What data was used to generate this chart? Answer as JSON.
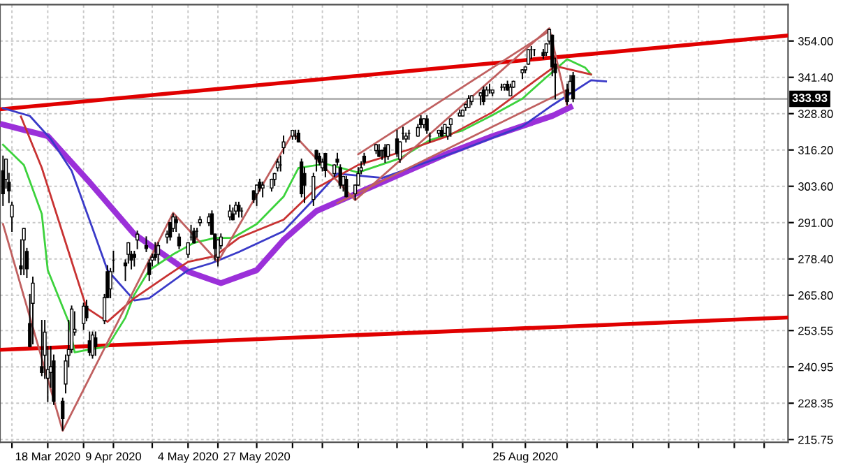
{
  "chart_data": {
    "type": "candlestick",
    "x": [
      "2020-03-03",
      "2020-03-04",
      "2020-03-05",
      "2020-03-06",
      "2020-03-09",
      "2020-03-10",
      "2020-03-11",
      "2020-03-12",
      "2020-03-13",
      "2020-03-16",
      "2020-03-17",
      "2020-03-18",
      "2020-03-19",
      "2020-03-20",
      "2020-03-23",
      "2020-03-24",
      "2020-03-25",
      "2020-03-26",
      "2020-03-27",
      "2020-03-30",
      "2020-03-31",
      "2020-04-01",
      "2020-04-02",
      "2020-04-03",
      "2020-04-06",
      "2020-04-07",
      "2020-04-08",
      "2020-04-09",
      "2020-04-13",
      "2020-04-14",
      "2020-04-15",
      "2020-04-16",
      "2020-04-17",
      "2020-04-20",
      "2020-04-21",
      "2020-04-22",
      "2020-04-23",
      "2020-04-24",
      "2020-04-27",
      "2020-04-28",
      "2020-04-29",
      "2020-04-30",
      "2020-05-01",
      "2020-05-04",
      "2020-05-05",
      "2020-05-06",
      "2020-05-07",
      "2020-05-08",
      "2020-05-11",
      "2020-05-12",
      "2020-05-13",
      "2020-05-14",
      "2020-05-15",
      "2020-05-18",
      "2020-05-19",
      "2020-05-20",
      "2020-05-21",
      "2020-05-22",
      "2020-05-26",
      "2020-05-27",
      "2020-05-28",
      "2020-05-29",
      "2020-06-01",
      "2020-06-02",
      "2020-06-03",
      "2020-06-04",
      "2020-06-05",
      "2020-06-08",
      "2020-06-09",
      "2020-06-10",
      "2020-06-11",
      "2020-06-12",
      "2020-06-15",
      "2020-06-16",
      "2020-06-17",
      "2020-06-18",
      "2020-06-19",
      "2020-06-22",
      "2020-06-23",
      "2020-06-24",
      "2020-06-25",
      "2020-06-26",
      "2020-06-29",
      "2020-06-30",
      "2020-07-01",
      "2020-07-02",
      "2020-07-06",
      "2020-07-07",
      "2020-07-08",
      "2020-07-09",
      "2020-07-10",
      "2020-07-13",
      "2020-07-14",
      "2020-07-15",
      "2020-07-16",
      "2020-07-17",
      "2020-07-20",
      "2020-07-21",
      "2020-07-22",
      "2020-07-23",
      "2020-07-24",
      "2020-07-27",
      "2020-07-28",
      "2020-07-29",
      "2020-07-30",
      "2020-07-31",
      "2020-08-03",
      "2020-08-04",
      "2020-08-05",
      "2020-08-06",
      "2020-08-07",
      "2020-08-10",
      "2020-08-11",
      "2020-08-12",
      "2020-08-13",
      "2020-08-14",
      "2020-08-17",
      "2020-08-18",
      "2020-08-19",
      "2020-08-20",
      "2020-08-21",
      "2020-08-24",
      "2020-08-25",
      "2020-08-26",
      "2020-08-27",
      "2020-08-28",
      "2020-08-31",
      "2020-09-01",
      "2020-09-02",
      "2020-09-03",
      "2020-09-04",
      "2020-09-08",
      "2020-09-09",
      "2020-09-10"
    ],
    "ohlc": [
      [
        309,
        314,
        297,
        301
      ],
      [
        306,
        313,
        303,
        313
      ],
      [
        305,
        308,
        298,
        302
      ],
      [
        293,
        298,
        288,
        297
      ],
      [
        276,
        285,
        273,
        275
      ],
      [
        285,
        289,
        273,
        289
      ],
      [
        281,
        282,
        272,
        275
      ],
      [
        256,
        266,
        248,
        248
      ],
      [
        263,
        272,
        249,
        270
      ],
      [
        241,
        257,
        238,
        239
      ],
      [
        245,
        257,
        237,
        253
      ],
      [
        237,
        248,
        229,
        240
      ],
      [
        239,
        248,
        234,
        241
      ],
      [
        243,
        245,
        228,
        229
      ],
      [
        229,
        230,
        219,
        223
      ],
      [
        235,
        245,
        232,
        243
      ],
      [
        245,
        257,
        241,
        247
      ],
      [
        247,
        262,
        246,
        261
      ],
      [
        253,
        260,
        252,
        254
      ],
      [
        256,
        263,
        254,
        262
      ],
      [
        262,
        264,
        257,
        258
      ],
      [
        250,
        253,
        245,
        246
      ],
      [
        245,
        253,
        244,
        252
      ],
      [
        251,
        253,
        245,
        248
      ],
      [
        257,
        266,
        256,
        265
      ],
      [
        274,
        276,
        265,
        265
      ],
      [
        268,
        275,
        265,
        274
      ],
      [
        278,
        281,
        274,
        278
      ],
      [
        277,
        278,
        271,
        276
      ],
      [
        280,
        284,
        277,
        284
      ],
      [
        280,
        281,
        275,
        278
      ],
      [
        280,
        281,
        276,
        279
      ],
      [
        285,
        288,
        282,
        287
      ],
      [
        283,
        286,
        281,
        282
      ],
      [
        277,
        278,
        271,
        273
      ],
      [
        278,
        280,
        276,
        279
      ],
      [
        280,
        284,
        278,
        279
      ],
      [
        280,
        284,
        277,
        283
      ],
      [
        286,
        288,
        284,
        287
      ],
      [
        291,
        291,
        285,
        286
      ],
      [
        289,
        294,
        288,
        293
      ],
      [
        292,
        293,
        288,
        291
      ],
      [
        286,
        287,
        282,
        283
      ],
      [
        280,
        284,
        279,
        284
      ],
      [
        286,
        290,
        285,
        286
      ],
      [
        288,
        289,
        284,
        284
      ],
      [
        288,
        289,
        286,
        288
      ],
      [
        291,
        293,
        290,
        292
      ],
      [
        291,
        294,
        290,
        293
      ],
      [
        294,
        295,
        287,
        287
      ],
      [
        287,
        287,
        278,
        282
      ],
      [
        279,
        285,
        276,
        285
      ],
      [
        283,
        287,
        282,
        286
      ],
      [
        293,
        297,
        292,
        295
      ],
      [
        294,
        296,
        292,
        292
      ],
      [
        295,
        298,
        294,
        297
      ],
      [
        297,
        298,
        293,
        295
      ],
      [
        295,
        296,
        293,
        295
      ],
      [
        302,
        302,
        298,
        299
      ],
      [
        301,
        304,
        297,
        304
      ],
      [
        305,
        306,
        302,
        303
      ],
      [
        303,
        305,
        300,
        304
      ],
      [
        303,
        306,
        302,
        306
      ],
      [
        306,
        308,
        304,
        308
      ],
      [
        310,
        313,
        309,
        312
      ],
      [
        311,
        314,
        309,
        311
      ],
      [
        317,
        321,
        315,
        319
      ],
      [
        321,
        323,
        320,
        323
      ],
      [
        321,
        323,
        320,
        321
      ],
      [
        322,
        323,
        319,
        319
      ],
      [
        312,
        313,
        300,
        301
      ],
      [
        308,
        310,
        298,
        304
      ],
      [
        299,
        308,
        297,
        307
      ],
      [
        316,
        316,
        309,
        313
      ],
      [
        314,
        315,
        311,
        312
      ],
      [
        310,
        313,
        309,
        312
      ],
      [
        315,
        315,
        307,
        309
      ],
      [
        308,
        311,
        307,
        311
      ],
      [
        313,
        315,
        311,
        312
      ],
      [
        310,
        311,
        303,
        304
      ],
      [
        304,
        307,
        302,
        307
      ],
      [
        306,
        307,
        300,
        300
      ],
      [
        301,
        304,
        299,
        304
      ],
      [
        304,
        310,
        304,
        308
      ],
      [
        309,
        312,
        308,
        310
      ],
      [
        314,
        315,
        311,
        312
      ],
      [
        316,
        318,
        315,
        318
      ],
      [
        316,
        318,
        314,
        314
      ],
      [
        316,
        316,
        313,
        316
      ],
      [
        317,
        318,
        312,
        314
      ],
      [
        314,
        318,
        313,
        318
      ],
      [
        320,
        323,
        314,
        315
      ],
      [
        313,
        319,
        312,
        319
      ],
      [
        322,
        324,
        320,
        322
      ],
      [
        320,
        322,
        319,
        321
      ],
      [
        322,
        323,
        320,
        322
      ],
      [
        321,
        325,
        321,
        324
      ],
      [
        327,
        328,
        324,
        325
      ],
      [
        325,
        327,
        324,
        327
      ],
      [
        327,
        328,
        322,
        323
      ],
      [
        321,
        322,
        319,
        321
      ],
      [
        322,
        323,
        321,
        323
      ],
      [
        323,
        324,
        321,
        321
      ],
      [
        322,
        325,
        322,
        325
      ],
      [
        321,
        324,
        320,
        324
      ],
      [
        325,
        327,
        321,
        327
      ],
      [
        328,
        330,
        328,
        329
      ],
      [
        328,
        330,
        328,
        330
      ],
      [
        331,
        332,
        330,
        332
      ],
      [
        331,
        335,
        331,
        334
      ],
      [
        333,
        335,
        332,
        335
      ],
      [
        335,
        336,
        332,
        336
      ],
      [
        337,
        338,
        332,
        333
      ],
      [
        335,
        338,
        335,
        337
      ],
      [
        337,
        339,
        336,
        337
      ],
      [
        336,
        337,
        335,
        337
      ],
      [
        338,
        339,
        337,
        338
      ],
      [
        338,
        339,
        337,
        339
      ],
      [
        339,
        340,
        337,
        337
      ],
      [
        335,
        339,
        335,
        338
      ],
      [
        338,
        340,
        338,
        340
      ],
      [
        343,
        344,
        341,
        344
      ],
      [
        344,
        345,
        343,
        345
      ],
      [
        346,
        351,
        346,
        351
      ],
      [
        351,
        352,
        348,
        351
      ],
      [
        351,
        351,
        349,
        351
      ],
      [
        350,
        351,
        348,
        349
      ],
      [
        350,
        353,
        349,
        353
      ],
      [
        354,
        358,
        353,
        358
      ],
      [
        356,
        356,
        342,
        345
      ],
      [
        346,
        348,
        334,
        343
      ],
      [
        337,
        339,
        332,
        333
      ],
      [
        336,
        342,
        336,
        340
      ],
      [
        342,
        343,
        333,
        334
      ]
    ],
    "series": [
      {
        "type": "line",
        "color": "#e00000",
        "x": [
          "2020-03-02",
          "2020-11-21"
        ],
        "values": [
          330.3,
          355.9
        ]
      },
      {
        "type": "line",
        "color": "#e00000",
        "x": [
          "2020-03-02",
          "2020-11-21"
        ],
        "values": [
          246.9,
          258.1
        ]
      },
      {
        "type": "line",
        "color": "#9b30d9",
        "x": [
          "2020-03-03",
          "2020-03-18",
          "2020-04-01",
          "2020-04-16",
          "2020-05-04",
          "2020-05-15",
          "2020-05-27",
          "2020-06-05",
          "2020-06-16",
          "2020-07-08",
          "2020-07-30",
          "2020-08-14",
          "2020-09-03",
          "2020-09-09"
        ],
        "values": [
          325,
          321,
          305,
          287,
          274,
          270,
          274.5,
          285,
          295,
          305,
          315,
          321,
          328,
          331
        ]
      },
      {
        "type": "line",
        "color": "#3a3ac8",
        "x": [
          "2020-03-03",
          "2020-03-12",
          "2020-03-19",
          "2020-03-26",
          "2020-04-02",
          "2020-04-07",
          "2020-04-16",
          "2020-04-21",
          "2020-05-04",
          "2020-05-12",
          "2020-05-21",
          "2020-06-05",
          "2020-06-16",
          "2020-06-23",
          "2020-07-08",
          "2020-08-03",
          "2020-08-24",
          "2020-09-03",
          "2020-09-16",
          "2020-09-21"
        ],
        "values": [
          330.7,
          328,
          320,
          309,
          289,
          274.5,
          264,
          264.8,
          274.5,
          277,
          280.8,
          288,
          300,
          308,
          306.5,
          316,
          324.4,
          331.7,
          340.4,
          340
        ]
      },
      {
        "type": "line",
        "color": "#3cd23c",
        "x": [
          "2020-03-03",
          "2020-03-10",
          "2020-03-16",
          "2020-03-18",
          "2020-03-25",
          "2020-03-27",
          "2020-04-01",
          "2020-04-07",
          "2020-04-13",
          "2020-04-16",
          "2020-04-21",
          "2020-04-29",
          "2020-05-06",
          "2020-05-13",
          "2020-05-19",
          "2020-05-27",
          "2020-06-05",
          "2020-06-10",
          "2020-06-19",
          "2020-06-30",
          "2020-07-14",
          "2020-07-24",
          "2020-08-04",
          "2020-08-14",
          "2020-08-24",
          "2020-09-01",
          "2020-09-08",
          "2020-09-14",
          "2020-09-16"
        ],
        "values": [
          318,
          311,
          294,
          274.5,
          256.6,
          246,
          247,
          248,
          258,
          266,
          274.5,
          280,
          284,
          285.7,
          285.7,
          290.5,
          300,
          310,
          311.4,
          308.4,
          313.3,
          319.6,
          323,
          328.3,
          334,
          341.4,
          347.7,
          344.8,
          342.4
        ]
      },
      {
        "type": "line",
        "color": "#c83232",
        "x": [
          "2020-03-09",
          "2020-03-16",
          "2020-03-25",
          "2020-03-31",
          "2020-04-07",
          "2020-04-16",
          "2020-04-27",
          "2020-05-04",
          "2020-05-13",
          "2020-05-21",
          "2020-06-05",
          "2020-06-16",
          "2020-06-30",
          "2020-07-16",
          "2020-07-30",
          "2020-08-14",
          "2020-08-28",
          "2020-09-04",
          "2020-09-16"
        ],
        "values": [
          327.8,
          310,
          280.8,
          261.4,
          256.6,
          264.8,
          272.6,
          277.4,
          279.4,
          285.7,
          292,
          303,
          311,
          316,
          321,
          329.3,
          340,
          345.3,
          342.4
        ]
      },
      {
        "type": "line",
        "color": "#c06060",
        "x": [
          "2020-03-03",
          "2020-03-23",
          "2020-04-29",
          "2020-05-14",
          "2020-06-08",
          "2020-06-29",
          "2020-09-02",
          "2020-09-08"
        ],
        "values": [
          290.5,
          218.8,
          294.4,
          277.4,
          322,
          298.8,
          358.4,
          331.7
        ]
      },
      {
        "type": "line",
        "color": "#c06060",
        "x": [
          "2020-06-30",
          "2020-09-02"
        ],
        "values": [
          314.7,
          357.4
        ]
      },
      {
        "type": "line",
        "color": "#c06060",
        "x": [
          "2020-06-23",
          "2020-09-10"
        ],
        "values": [
          297.8,
          338
        ]
      }
    ],
    "xlim": [
      "2020-03-02",
      "2020-11-21"
    ],
    "xticks": [
      {
        "value": "2020-03-06",
        "label": null
      },
      {
        "value": "2020-03-18",
        "label": "18 Mar 2020"
      },
      {
        "value": "2020-03-30",
        "label": null
      },
      {
        "value": "2020-04-09",
        "label": "9 Apr 2020"
      },
      {
        "value": "2020-04-22",
        "label": null
      },
      {
        "value": "2020-05-04",
        "label": "4 May 2020"
      },
      {
        "value": "2020-05-14",
        "label": null
      },
      {
        "value": "2020-05-27",
        "label": "27 May 2020"
      },
      {
        "value": "2020-06-08",
        "label": null
      },
      {
        "value": "2020-06-18",
        "label": null
      },
      {
        "value": "2020-06-30",
        "label": null
      },
      {
        "value": "2020-07-13",
        "label": null
      },
      {
        "value": "2020-07-23",
        "label": null
      },
      {
        "value": "2020-08-04",
        "label": null
      },
      {
        "value": "2020-08-14",
        "label": null
      },
      {
        "value": "2020-08-25",
        "label": "25 Aug 2020"
      },
      {
        "value": "2020-09-08",
        "label": null
      },
      {
        "value": "2020-09-18",
        "label": null
      },
      {
        "value": "2020-09-30",
        "label": null
      },
      {
        "value": "2020-10-12",
        "label": null
      },
      {
        "value": "2020-10-22",
        "label": null
      },
      {
        "value": "2020-11-03",
        "label": null
      },
      {
        "value": "2020-11-13",
        "label": null
      }
    ],
    "ylim": [
      214.8,
      366.6
    ],
    "yticks": [
      {
        "value": 215.75,
        "label": "215.75"
      },
      {
        "value": 228.35,
        "label": "228.35"
      },
      {
        "value": 240.95,
        "label": "240.95"
      },
      {
        "value": 253.55,
        "label": "253.55"
      },
      {
        "value": 265.8,
        "label": "265.80"
      },
      {
        "value": 278.4,
        "label": "278.40"
      },
      {
        "value": 291,
        "label": "291.00"
      },
      {
        "value": 303.6,
        "label": "303.60"
      },
      {
        "value": 316.2,
        "label": "316.20"
      },
      {
        "value": 328.8,
        "label": "328.80"
      },
      {
        "value": 341.4,
        "label": "341.40"
      },
      {
        "value": 354,
        "label": "354.00"
      }
    ],
    "ref_lines": [
      {
        "axis": "y",
        "value": 333.93,
        "label": "333.93",
        "color": "#a0a0a0"
      }
    ],
    "grid": true
  }
}
